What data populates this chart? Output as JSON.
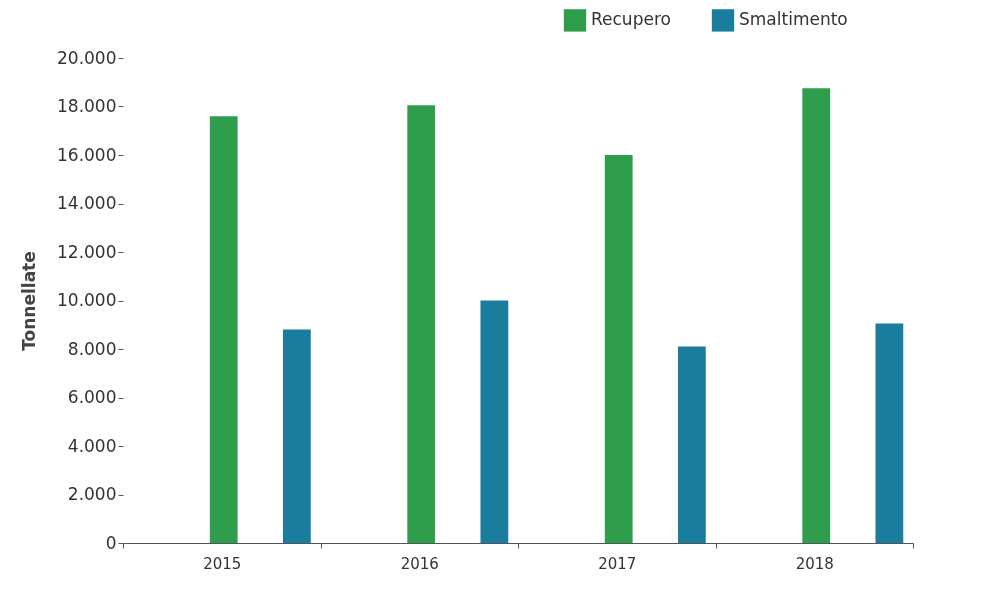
{
  "chart_data": {
    "type": "bar",
    "ylabel": "Tonnellate",
    "categories": [
      "2015",
      "2016",
      "2017",
      "2018"
    ],
    "series": [
      {
        "name": "Recupero",
        "color": "#2f9e4c",
        "values": [
          17600,
          18050,
          16000,
          18750
        ]
      },
      {
        "name": "Smaltimento",
        "color": "#1a7d9e",
        "values": [
          8800,
          10000,
          8100,
          9050
        ]
      }
    ],
    "ylim": [
      0,
      20000
    ],
    "yticks": [
      {
        "value": 0,
        "label": "0"
      },
      {
        "value": 2000,
        "label": "2.000"
      },
      {
        "value": 4000,
        "label": "4.000"
      },
      {
        "value": 6000,
        "label": "6.000"
      },
      {
        "value": 8000,
        "label": "8.000"
      },
      {
        "value": 10000,
        "label": "10.000"
      },
      {
        "value": 12000,
        "label": "12.000"
      },
      {
        "value": 14000,
        "label": "14.000"
      },
      {
        "value": 16000,
        "label": "16.000"
      },
      {
        "value": 18000,
        "label": "18.000"
      },
      {
        "value": 20000,
        "label": "20.000"
      }
    ],
    "grid": false,
    "legend": "top right"
  }
}
